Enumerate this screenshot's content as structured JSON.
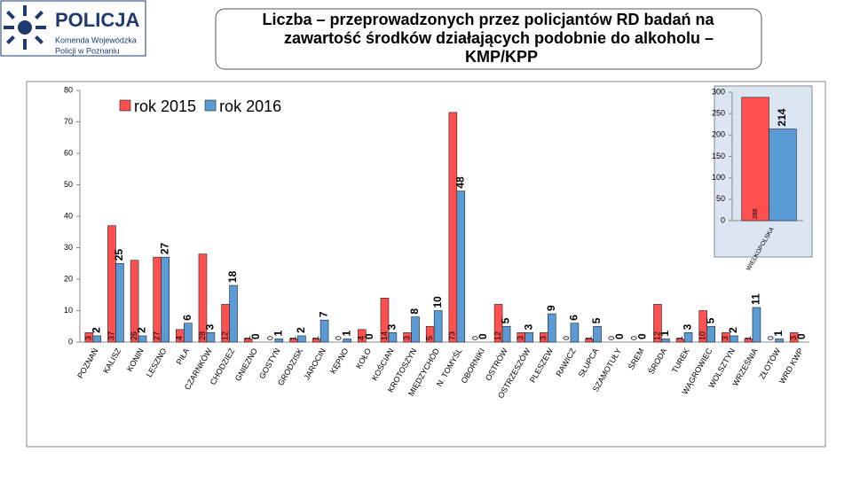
{
  "header": {
    "logo_title": "POLICJA",
    "logo_line1": "Komenda Wojewódzka",
    "logo_line2": "Policji w Poznaniu"
  },
  "chart_data": [
    {
      "type": "bar",
      "title": [
        "Liczba – przeprowadzonych przez policjantów RD badań na",
        "zawartość  środków działających podobnie do alkoholu –",
        "KMP/KPP"
      ],
      "categories": [
        "POZNAŃ",
        "KALISZ",
        "KONIN",
        "LESZNO",
        "PIŁA",
        "CZARNKÓW",
        "CHODZIEŻ",
        "GNIEZNO",
        "GOSTYŃ",
        "GRODZISK",
        "JAROCIN",
        "KĘPNO",
        "KOŁO",
        "KOŚCIAN",
        "KROTOSZYN",
        "MIĘDZYCHÓD",
        "N. TOMYŚL",
        "OBORNIKI",
        "OSTRÓW",
        "OSTRZESZÓW",
        "PLESZEW",
        "RAWICZ",
        "SŁUPCA",
        "SZAMOTUŁY",
        "ŚREM",
        "ŚRODA",
        "TUREK",
        "WĄGROWIEC",
        "WOLSZTYN",
        "WRZEŚNIA",
        "ZŁOTÓW",
        "WRD KWP"
      ],
      "series": [
        {
          "name": "rok 2015",
          "color": "#ff5050",
          "values": [
            3,
            37,
            26,
            27,
            4,
            28,
            12,
            1,
            0,
            1,
            1,
            0,
            4,
            14,
            3,
            5,
            73,
            0,
            12,
            3,
            3,
            0,
            1,
            0,
            0,
            12,
            1,
            10,
            3,
            1,
            0,
            3
          ]
        },
        {
          "name": "rok 2016",
          "color": "#5b9bd5",
          "values": [
            2,
            25,
            2,
            27,
            6,
            3,
            18,
            0,
            1,
            2,
            7,
            1,
            0,
            3,
            8,
            10,
            48,
            0,
            5,
            3,
            9,
            6,
            5,
            0,
            0,
            1,
            3,
            5,
            2,
            11,
            1,
            0
          ]
        }
      ],
      "ylim": [
        0,
        80
      ],
      "yticks": [
        0,
        10,
        20,
        30,
        40,
        50,
        60,
        70,
        80
      ],
      "legend": "top-left"
    },
    {
      "type": "bar",
      "categories": [
        "WIELKOPOLSKA"
      ],
      "series": [
        {
          "name": "rok 2015",
          "color": "#ff5050",
          "values": [
            288
          ]
        },
        {
          "name": "rok 2016",
          "color": "#5b9bd5",
          "values": [
            214
          ]
        }
      ],
      "ylim": [
        0,
        300
      ],
      "yticks": [
        0,
        50,
        100,
        150,
        200,
        250,
        300
      ]
    }
  ]
}
